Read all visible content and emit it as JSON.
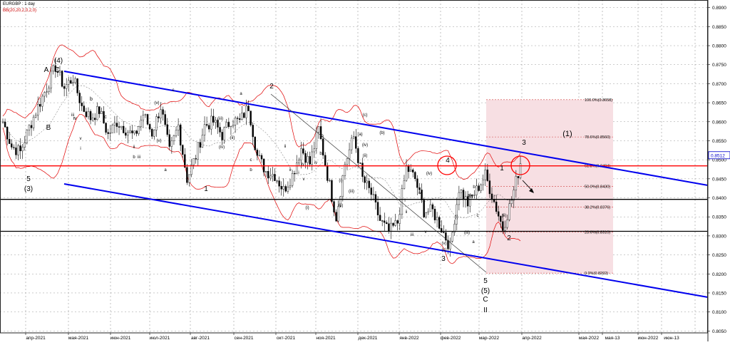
{
  "header": {
    "symbol_line": "EURGBP : 1 day",
    "indicator_line": "BB(20,20,2,0,2,0)"
  },
  "chart_data": {
    "type": "line",
    "style": "candlestick",
    "xlabel": "",
    "ylabel": "",
    "grid": true,
    "ylim": [
      0.8045,
      0.892
    ],
    "x_tick_labels": [
      "апр-2021",
      "мая-2021",
      "июн-2021",
      "июл-2021",
      "авг-2021",
      "сен-2021",
      "окт-2021",
      "ноя-2021",
      "дек-2021",
      "янв-2022",
      "фев-2022",
      "мар-2022",
      "апр-2022",
      "мая-2022",
      "мая-13",
      "июн-2022",
      "июн-13"
    ],
    "y_ticks": [
      0.805,
      0.81,
      0.815,
      0.82,
      0.825,
      0.83,
      0.835,
      0.84,
      0.845,
      0.85,
      0.855,
      0.86,
      0.865,
      0.87,
      0.875,
      0.88,
      0.885,
      0.89
    ],
    "y_tick_labels": [
      "0.8050",
      "0.8100",
      "0.8150",
      "0.8200",
      "0.8250",
      "0.8300",
      "0.8350",
      "0.8400",
      "0.8450",
      "0.8500",
      "0.8550",
      "0.8600",
      "0.8650",
      "0.8700",
      "0.8750",
      "0.8800",
      "0.8850",
      "0.8900"
    ],
    "price_label": "0.8512",
    "price_value": 0.8512,
    "series": [
      {
        "values": [
          0.86,
          0.8535,
          0.852,
          0.8585,
          0.864,
          0.869,
          0.8745,
          0.869,
          0.8715,
          0.864,
          0.861,
          0.863,
          0.8565,
          0.86,
          0.858,
          0.856,
          0.862,
          0.857,
          0.864,
          0.852,
          0.859,
          0.845,
          0.851,
          0.859,
          0.86,
          0.8565,
          0.8605,
          0.86,
          0.864,
          0.851,
          0.847,
          0.846,
          0.842,
          0.846,
          0.853,
          0.849,
          0.858,
          0.846,
          0.835,
          0.849,
          0.856,
          0.845,
          0.841,
          0.834,
          0.831,
          0.8335,
          0.848,
          0.845,
          0.8365,
          0.8365,
          0.832,
          0.827,
          0.8425,
          0.8385,
          0.842,
          0.846,
          0.839,
          0.832,
          0.8395,
          0.849
        ]
      }
    ],
    "levels": [
      {
        "price": 0.8484,
        "label": "",
        "color": "#ff0000"
      },
      {
        "price": 0.8396,
        "label": "",
        "color": "#000000"
      },
      {
        "price": 0.8312,
        "label": "",
        "color": "#000000"
      }
    ],
    "fib_levels": [
      {
        "price": 0.8658,
        "label": "100.0%(0.8658)"
      },
      {
        "price": 0.856,
        "label": "78.6%(0.8560)"
      },
      {
        "price": 0.8484,
        "label": "61.8%(0.8484)"
      },
      {
        "price": 0.843,
        "label": "50.0%(0.8430)"
      },
      {
        "price": 0.8376,
        "label": "38.2%(0.8376)"
      },
      {
        "price": 0.831,
        "label": "23.6%(0.8310)"
      },
      {
        "price": 0.8202,
        "label": "0.0%(0.8202)"
      }
    ],
    "colors": {
      "channel": "#0000ee",
      "bands": "#e00000",
      "candles": "#000000",
      "fib_zone": "#f7dfe3",
      "grid": "#999999",
      "resistance": "#ff0000"
    },
    "wave_labels": [
      "5",
      "(3)",
      "A",
      "C",
      "(4)",
      "B",
      "iv",
      "b",
      "c",
      "iii",
      "v",
      "i",
      "ii",
      "b",
      "a",
      "c",
      "iii",
      "ii",
      "iv",
      "(v)",
      "1",
      "(iii)",
      "(iv)",
      "(ii)",
      "a",
      "c",
      "b",
      "(i)",
      "2",
      "(v)",
      "b",
      "c",
      "v",
      "i",
      "ii",
      "iv",
      "(i)",
      "(ii)",
      "(iii)",
      "(iv)",
      "(a)",
      "(c)",
      "(b)",
      "(ii)",
      "i",
      "ii",
      "iii",
      "iv",
      "v",
      "(iv)",
      "4",
      "(v)",
      "(iii)",
      "3",
      "c",
      "(c)",
      "(i)",
      "b",
      "a",
      "c",
      "(b)",
      "(ii)",
      "1",
      "2",
      "3",
      "(1)",
      "5",
      "(5)",
      "C",
      "II"
    ]
  }
}
